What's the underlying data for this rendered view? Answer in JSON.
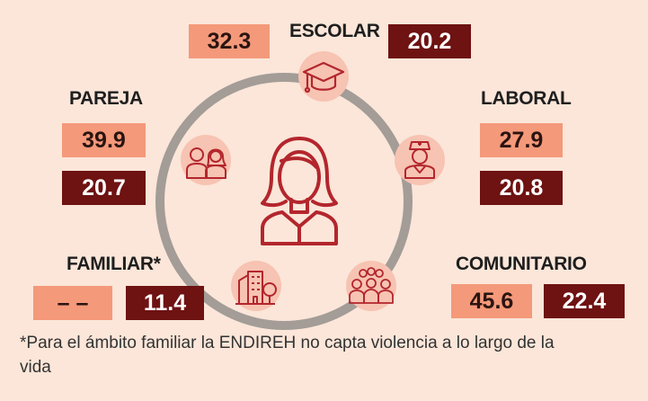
{
  "ambitos": {
    "escolar": {
      "label": "ESCOLAR",
      "light": "32.3",
      "dark": "20.2",
      "icon": "graduation-cap-icon"
    },
    "pareja": {
      "label": "PAREJA",
      "light": "39.9",
      "dark": "20.7",
      "icon": "couple-icon"
    },
    "laboral": {
      "label": "LABORAL",
      "light": "27.9",
      "dark": "20.8",
      "icon": "nurse-icon"
    },
    "familiar": {
      "label": "FAMILIAR*",
      "light": "– –",
      "dark": "11.4",
      "icon": "house-tree-icon"
    },
    "comunitario": {
      "label": "COMUNITARIO",
      "light": "45.6",
      "dark": "22.4",
      "icon": "crowd-icon"
    }
  },
  "center_icon": "woman-icon",
  "footnote": "*Para el ámbito familiar la ENDIREH no capta violencia a lo largo de la vida",
  "colors": {
    "background": "#fbe6d9",
    "light_box": "#f4997a",
    "dark_box": "#6e1212",
    "ring": "#a39c97",
    "icon_circle": "#f7c3b2",
    "icon_stroke": "#b3262d"
  }
}
